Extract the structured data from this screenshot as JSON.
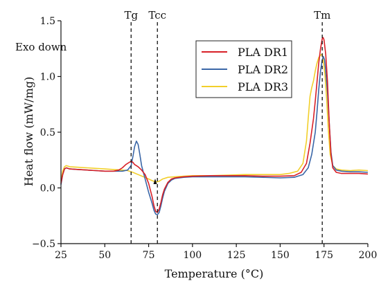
{
  "chart_data": {
    "type": "line",
    "xlabel": "Temperature (°C)",
    "ylabel": "Heat flow (mW/mg)",
    "xlim": [
      25,
      200
    ],
    "ylim": [
      -0.5,
      1.5
    ],
    "xticks": [
      25,
      50,
      75,
      100,
      125,
      150,
      175,
      200
    ],
    "yticks": [
      -0.5,
      0.0,
      0.5,
      1.0,
      1.5
    ],
    "xtick_labels": [
      "25",
      "50",
      "75",
      "100",
      "125",
      "150",
      "175",
      "200"
    ],
    "ytick_labels": [
      "−0.5",
      "0.0",
      "0.5",
      "1.0",
      "1.5"
    ],
    "annotation": "Exo down",
    "grid": false,
    "legend_position": "top-right",
    "vertical_lines": [
      {
        "label": "Tg",
        "x": 65
      },
      {
        "label": "Tcc",
        "x": 80
      },
      {
        "label": "Tm",
        "x": 174
      }
    ],
    "series": [
      {
        "name": "PLA DR1",
        "color": "#d81f26",
        "points": [
          [
            25,
            0.04
          ],
          [
            26,
            0.12
          ],
          [
            27,
            0.17
          ],
          [
            28,
            0.18
          ],
          [
            30,
            0.17
          ],
          [
            35,
            0.165
          ],
          [
            40,
            0.16
          ],
          [
            45,
            0.155
          ],
          [
            50,
            0.15
          ],
          [
            55,
            0.15
          ],
          [
            58,
            0.16
          ],
          [
            60,
            0.18
          ],
          [
            62,
            0.21
          ],
          [
            64,
            0.23
          ],
          [
            65,
            0.24
          ],
          [
            66,
            0.23
          ],
          [
            67,
            0.21
          ],
          [
            69,
            0.19
          ],
          [
            71,
            0.16
          ],
          [
            73,
            0.12
          ],
          [
            75,
            0.04
          ],
          [
            77,
            -0.08
          ],
          [
            78,
            -0.16
          ],
          [
            79,
            -0.21
          ],
          [
            80,
            -0.22
          ],
          [
            81,
            -0.19
          ],
          [
            82,
            -0.13
          ],
          [
            83,
            -0.06
          ],
          [
            84,
            -0.01
          ],
          [
            86,
            0.05
          ],
          [
            88,
            0.08
          ],
          [
            90,
            0.09
          ],
          [
            95,
            0.1
          ],
          [
            100,
            0.105
          ],
          [
            110,
            0.11
          ],
          [
            120,
            0.11
          ],
          [
            130,
            0.11
          ],
          [
            140,
            0.105
          ],
          [
            150,
            0.105
          ],
          [
            158,
            0.11
          ],
          [
            162,
            0.14
          ],
          [
            165,
            0.22
          ],
          [
            167,
            0.4
          ],
          [
            169,
            0.62
          ],
          [
            170,
            0.78
          ],
          [
            171,
            0.95
          ],
          [
            172,
            1.12
          ],
          [
            173,
            1.25
          ],
          [
            174,
            1.34
          ],
          [
            174.5,
            1.35
          ],
          [
            175,
            1.33
          ],
          [
            176,
            1.2
          ],
          [
            177,
            0.95
          ],
          [
            178,
            0.58
          ],
          [
            179,
            0.3
          ],
          [
            180,
            0.18
          ],
          [
            182,
            0.14
          ],
          [
            185,
            0.13
          ],
          [
            190,
            0.13
          ],
          [
            195,
            0.13
          ],
          [
            200,
            0.125
          ]
        ]
      },
      {
        "name": "PLA DR2",
        "color": "#3a66a7",
        "points": [
          [
            25,
            0.03
          ],
          [
            26,
            0.12
          ],
          [
            27,
            0.17
          ],
          [
            28,
            0.18
          ],
          [
            30,
            0.17
          ],
          [
            35,
            0.165
          ],
          [
            40,
            0.16
          ],
          [
            45,
            0.155
          ],
          [
            50,
            0.15
          ],
          [
            55,
            0.15
          ],
          [
            60,
            0.15
          ],
          [
            63,
            0.16
          ],
          [
            65,
            0.2
          ],
          [
            66,
            0.28
          ],
          [
            67,
            0.37
          ],
          [
            68,
            0.42
          ],
          [
            69,
            0.39
          ],
          [
            70,
            0.3
          ],
          [
            71,
            0.2
          ],
          [
            73,
            0.08
          ],
          [
            75,
            -0.04
          ],
          [
            77,
            -0.14
          ],
          [
            78,
            -0.2
          ],
          [
            79,
            -0.235
          ],
          [
            80,
            -0.24
          ],
          [
            81,
            -0.22
          ],
          [
            82,
            -0.16
          ],
          [
            83,
            -0.09
          ],
          [
            84,
            -0.03
          ],
          [
            86,
            0.04
          ],
          [
            88,
            0.07
          ],
          [
            90,
            0.085
          ],
          [
            95,
            0.095
          ],
          [
            100,
            0.1
          ],
          [
            110,
            0.1
          ],
          [
            120,
            0.1
          ],
          [
            130,
            0.1
          ],
          [
            140,
            0.095
          ],
          [
            150,
            0.09
          ],
          [
            158,
            0.095
          ],
          [
            163,
            0.12
          ],
          [
            166,
            0.18
          ],
          [
            168,
            0.3
          ],
          [
            170,
            0.5
          ],
          [
            171,
            0.68
          ],
          [
            172,
            0.88
          ],
          [
            173,
            1.05
          ],
          [
            174,
            1.15
          ],
          [
            174.6,
            1.18
          ],
          [
            175.3,
            1.15
          ],
          [
            176,
            1.05
          ],
          [
            177,
            0.85
          ],
          [
            178,
            0.58
          ],
          [
            179,
            0.32
          ],
          [
            180,
            0.2
          ],
          [
            182,
            0.16
          ],
          [
            185,
            0.15
          ],
          [
            190,
            0.145
          ],
          [
            195,
            0.145
          ],
          [
            200,
            0.14
          ]
        ]
      },
      {
        "name": "PLA DR3",
        "color": "#f2cf2a",
        "points": [
          [
            25,
            0.06
          ],
          [
            26,
            0.15
          ],
          [
            27,
            0.19
          ],
          [
            28,
            0.2
          ],
          [
            30,
            0.19
          ],
          [
            35,
            0.185
          ],
          [
            40,
            0.18
          ],
          [
            45,
            0.175
          ],
          [
            50,
            0.17
          ],
          [
            55,
            0.165
          ],
          [
            60,
            0.16
          ],
          [
            63,
            0.155
          ],
          [
            66,
            0.14
          ],
          [
            69,
            0.12
          ],
          [
            72,
            0.1
          ],
          [
            75,
            0.08
          ],
          [
            77,
            0.065
          ],
          [
            78,
            0.06
          ],
          [
            79,
            0.055
          ],
          [
            80,
            0.055
          ],
          [
            81,
            0.06
          ],
          [
            83,
            0.08
          ],
          [
            86,
            0.095
          ],
          [
            90,
            0.1
          ],
          [
            95,
            0.105
          ],
          [
            100,
            0.11
          ],
          [
            110,
            0.11
          ],
          [
            120,
            0.115
          ],
          [
            130,
            0.12
          ],
          [
            140,
            0.12
          ],
          [
            150,
            0.12
          ],
          [
            155,
            0.13
          ],
          [
            160,
            0.15
          ],
          [
            163,
            0.22
          ],
          [
            165,
            0.42
          ],
          [
            166,
            0.62
          ],
          [
            167,
            0.82
          ],
          [
            168,
            0.9
          ],
          [
            169,
            0.96
          ],
          [
            170,
            1.05
          ],
          [
            171,
            1.12
          ],
          [
            172,
            1.17
          ],
          [
            173,
            1.19
          ],
          [
            173.8,
            1.2
          ],
          [
            174.5,
            1.16
          ],
          [
            175.5,
            1.02
          ],
          [
            176.5,
            0.8
          ],
          [
            177.5,
            0.52
          ],
          [
            178.5,
            0.3
          ],
          [
            180,
            0.2
          ],
          [
            182,
            0.17
          ],
          [
            185,
            0.16
          ],
          [
            190,
            0.155
          ],
          [
            195,
            0.16
          ],
          [
            200,
            0.155
          ]
        ]
      }
    ]
  }
}
